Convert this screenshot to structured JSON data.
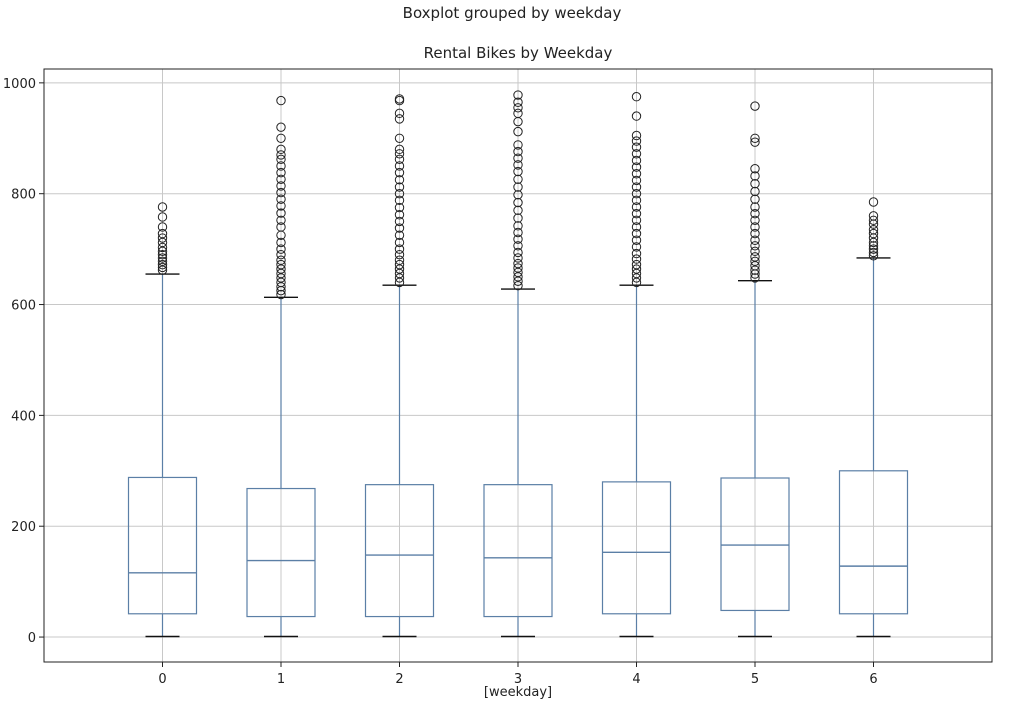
{
  "figure": {
    "suptitle": "Boxplot grouped by weekday",
    "colors": {
      "box": "#5b7fa6",
      "median": "#5b7fa6",
      "grid": "#c8c8c8",
      "outlier": "#222222",
      "frame": "#222222"
    }
  },
  "chart_data": {
    "type": "box",
    "title": "Rental Bikes by Weekday",
    "xlabel": "[weekday]",
    "ylabel": "",
    "categories": [
      "0",
      "1",
      "2",
      "3",
      "4",
      "5",
      "6"
    ],
    "ylim": [
      -45,
      1025
    ],
    "yticks": [
      0,
      200,
      400,
      600,
      800,
      1000
    ],
    "grid": true,
    "boxes": [
      {
        "label": "0",
        "whislo": 1,
        "q1": 42,
        "med": 116,
        "q3": 288,
        "whishi": 655,
        "fliers": [
          662,
          667,
          672,
          678,
          684,
          690,
          696,
          703,
          712,
          720,
          728,
          740,
          758,
          776
        ]
      },
      {
        "label": "1",
        "whislo": 1,
        "q1": 37,
        "med": 138,
        "q3": 268,
        "whishi": 613,
        "fliers": [
          618,
          625,
          632,
          640,
          648,
          656,
          664,
          672,
          680,
          690,
          700,
          712,
          725,
          740,
          752,
          765,
          778,
          790,
          802,
          814,
          826,
          838,
          850,
          862,
          870,
          880,
          900,
          920,
          968
        ]
      },
      {
        "label": "2",
        "whislo": 1,
        "q1": 37,
        "med": 148,
        "q3": 275,
        "whishi": 635,
        "fliers": [
          640,
          648,
          656,
          664,
          672,
          680,
          690,
          700,
          712,
          725,
          738,
          750,
          762,
          775,
          788,
          800,
          812,
          825,
          838,
          850,
          862,
          872,
          880,
          900,
          935,
          945,
          968,
          971
        ]
      },
      {
        "label": "3",
        "whislo": 1,
        "q1": 37,
        "med": 143,
        "q3": 275,
        "whishi": 628,
        "fliers": [
          634,
          642,
          650,
          658,
          666,
          674,
          684,
          694,
          706,
          718,
          730,
          742,
          756,
          770,
          784,
          798,
          812,
          826,
          840,
          852,
          864,
          876,
          888,
          912,
          930,
          945,
          955,
          965,
          978
        ]
      },
      {
        "label": "4",
        "whislo": 1,
        "q1": 42,
        "med": 153,
        "q3": 280,
        "whishi": 635,
        "fliers": [
          640,
          648,
          656,
          664,
          672,
          682,
          692,
          704,
          716,
          728,
          740,
          752,
          764,
          776,
          788,
          800,
          812,
          824,
          836,
          848,
          860,
          872,
          884,
          895,
          905,
          940,
          975
        ]
      },
      {
        "label": "5",
        "whislo": 1,
        "q1": 48,
        "med": 166,
        "q3": 287,
        "whishi": 643,
        "fliers": [
          648,
          655,
          662,
          670,
          678,
          686,
          696,
          706,
          716,
          728,
          740,
          752,
          764,
          776,
          790,
          804,
          818,
          832,
          845,
          893,
          900,
          958
        ]
      },
      {
        "label": "6",
        "whislo": 1,
        "q1": 42,
        "med": 128,
        "q3": 300,
        "whishi": 684,
        "fliers": [
          688,
          694,
          700,
          706,
          712,
          720,
          728,
          735,
          745,
          752,
          760,
          785
        ]
      }
    ]
  }
}
